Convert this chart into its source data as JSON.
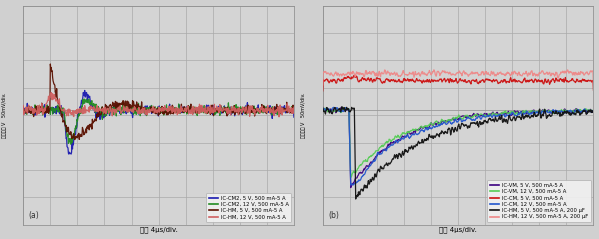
{
  "fig_bg": "#c8c8c8",
  "plot_bg": "#d8d8d8",
  "grid_color": "#b0b0b0",
  "title_a": "(a)",
  "title_b": "(b)",
  "xlabel": "時間 4μs/div.",
  "ylabel": "輸出電壓 V   50mV/div.",
  "subplot_a": {
    "legend": [
      {
        "label": "IC-CM2, 5 V, 500 mA-5 A",
        "color": "#1a1ab0"
      },
      {
        "label": "IC-CM2, 12 V, 500 mA-5 A",
        "color": "#228b22"
      },
      {
        "label": "IC-HM, 5 V, 500 mA-5 A",
        "color": "#5a1000"
      },
      {
        "label": "IC-HM, 12 V, 500 mA-5 A",
        "color": "#d06060"
      }
    ]
  },
  "subplot_b": {
    "legend": [
      {
        "label": "IC-VM, 5 V, 500 mA-5 A",
        "color": "#3b0080"
      },
      {
        "label": "IC-VM, 12 V, 500 mA-5 A",
        "color": "#55cc55"
      },
      {
        "label": "IC-CM, 5 V, 500 mA-5 A",
        "color": "#cc1111"
      },
      {
        "label": "IC-CM, 12 V, 500 mA-5 A",
        "color": "#2255cc"
      },
      {
        "label": "IC-HM, 5 V, 500 mA-5 A, 200 μF",
        "color": "#111111"
      },
      {
        "label": "IC-HM, 12 V, 500 mA-5 A, 200 μF",
        "color": "#ee8888"
      }
    ]
  }
}
